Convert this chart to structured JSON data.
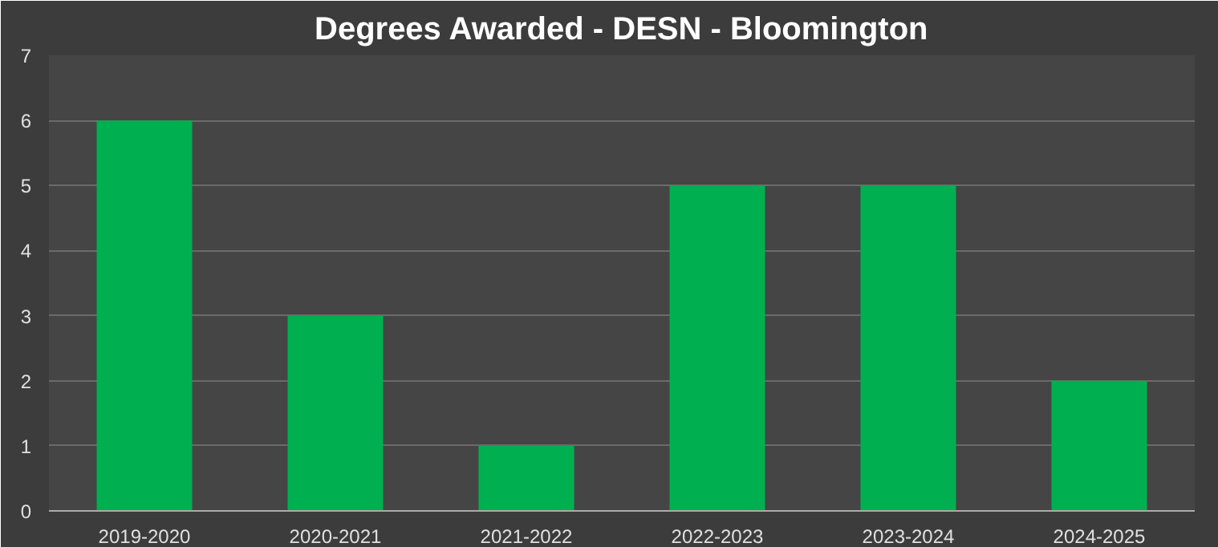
{
  "chart_data": {
    "type": "bar",
    "title": "Degrees Awarded - DESN - Bloomington",
    "categories": [
      "2019-2020",
      "2020-2021",
      "2021-2022",
      "2022-2023",
      "2023-2024",
      "2024-2025"
    ],
    "values": [
      6,
      3,
      1,
      5,
      5,
      2
    ],
    "color": "#00b050",
    "ylim": [
      0,
      7
    ],
    "yticks": [
      0,
      1,
      2,
      3,
      4,
      5,
      6,
      7
    ],
    "grid": "y"
  }
}
